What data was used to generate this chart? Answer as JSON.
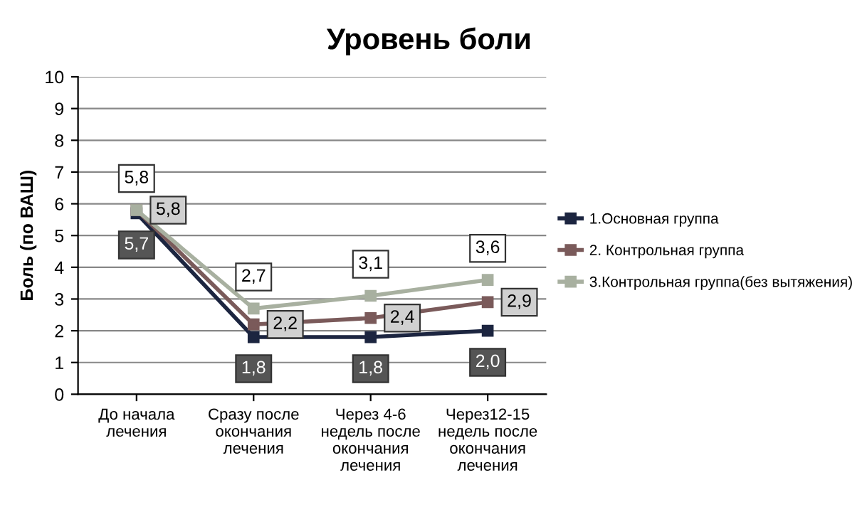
{
  "chart_data": {
    "type": "line",
    "title": "Уровень боли",
    "ylabel": "Боль (по ВАШ)",
    "categories": [
      "До начала\nлечения",
      "Сразу после\nокончания\nлечения",
      "Через 4-6\nнедель после\nокончания\nлечения",
      "Через12-15\nнедель после\nокончания\nлечения"
    ],
    "series": [
      {
        "name": "1.Основная группа",
        "color": "#1c2540",
        "values": [
          5.7,
          1.8,
          1.8,
          2.0
        ],
        "value_labels": [
          "5,7",
          "1,8",
          "1,8",
          "2,0"
        ]
      },
      {
        "name": "2. Контрольная группа",
        "color": "#7a5a5a",
        "values": [
          5.8,
          2.2,
          2.4,
          2.9
        ],
        "value_labels": [
          "5,8",
          "2,2",
          "2,4",
          "2,9"
        ]
      },
      {
        "name": "3.Контрольная группа(без вытяжения)",
        "color": "#a8b0a0",
        "values": [
          5.8,
          2.7,
          3.1,
          3.6
        ],
        "value_labels": [
          "5,8",
          "2,7",
          "3,1",
          "3,6"
        ]
      }
    ],
    "ylim": [
      0,
      10
    ],
    "yticks": [
      0,
      1,
      2,
      3,
      4,
      5,
      6,
      7,
      8,
      9,
      10
    ],
    "grid": "y",
    "legend": "right",
    "marker": "square",
    "line_style": "solid"
  }
}
